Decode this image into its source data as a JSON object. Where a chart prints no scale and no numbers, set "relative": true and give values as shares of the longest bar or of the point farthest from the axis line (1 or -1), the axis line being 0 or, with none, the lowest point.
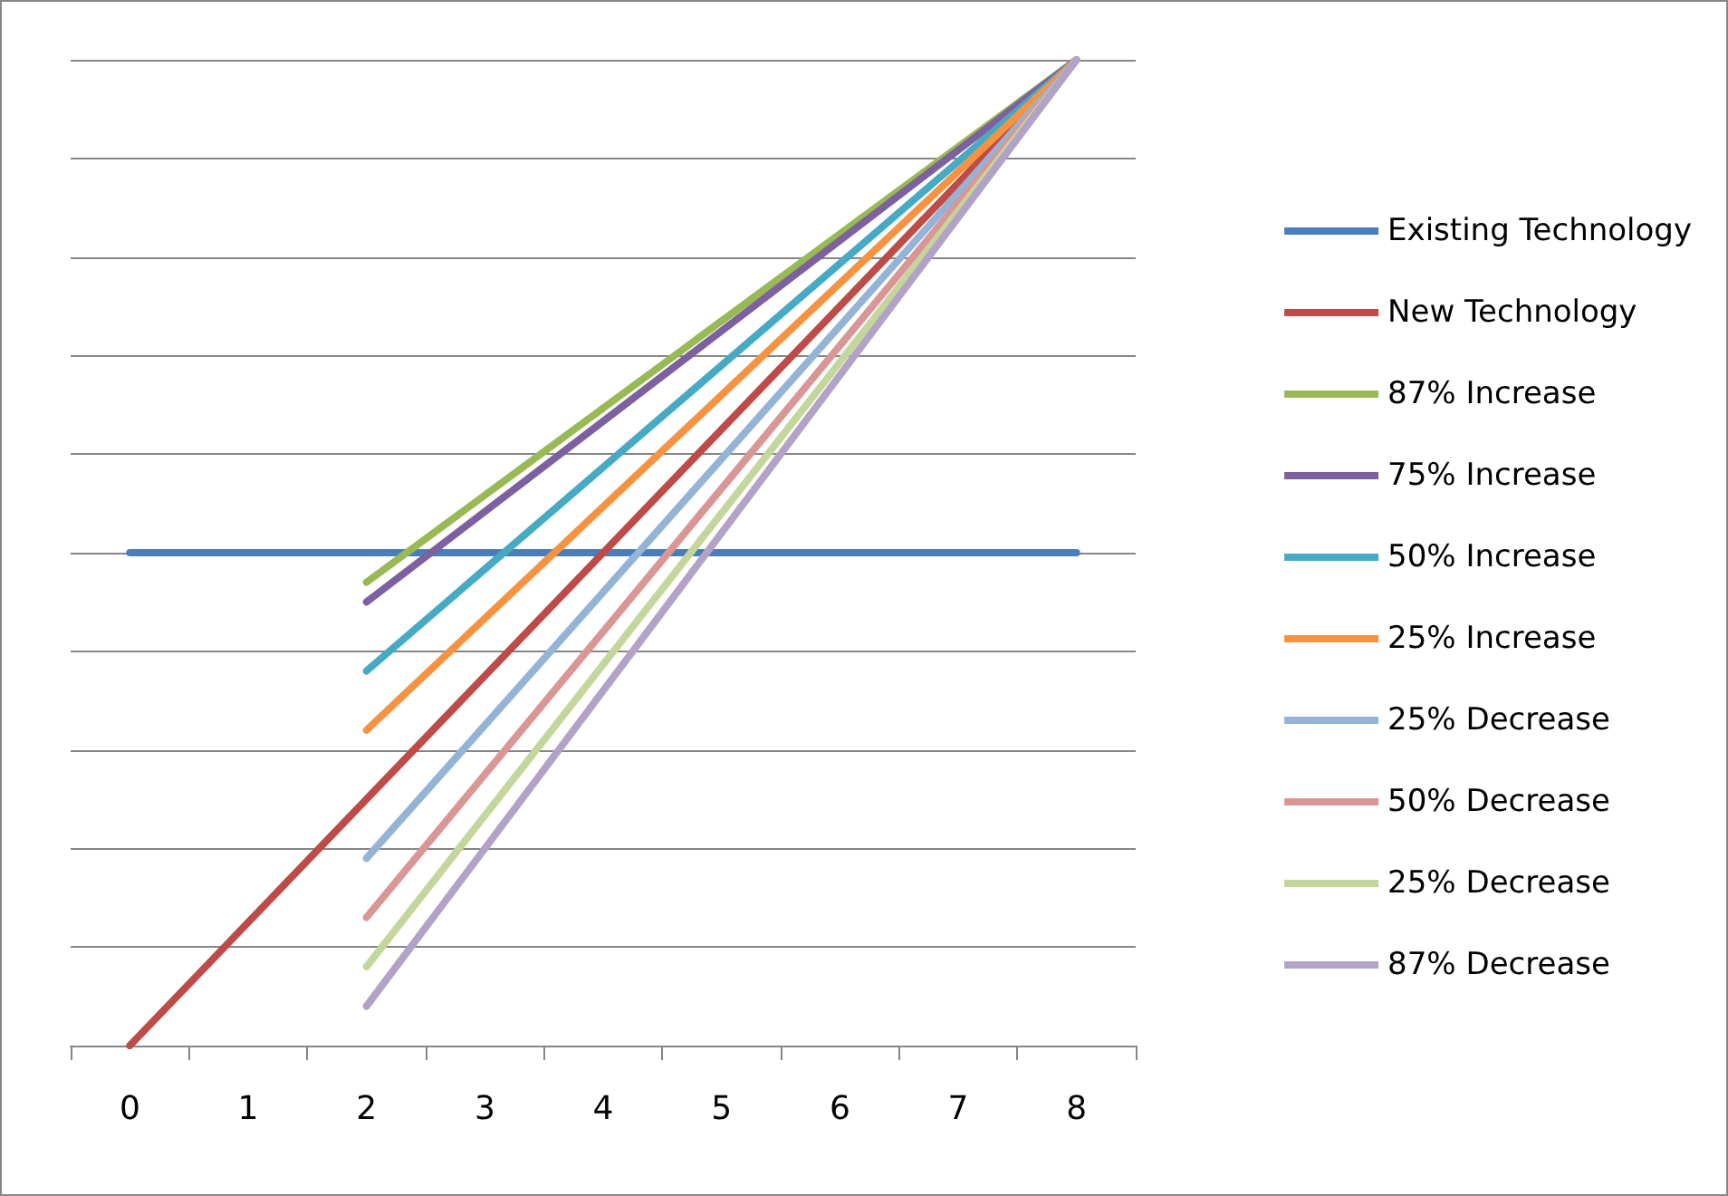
{
  "chart_data": {
    "type": "line",
    "relative": true,
    "categories": [
      "0",
      "1",
      "2",
      "3",
      "4",
      "5",
      "6",
      "7",
      "8"
    ],
    "grid": "y",
    "legend": "right",
    "marker": "none",
    "line_style": "solid",
    "series": [
      {
        "name": "Existing Technology",
        "color": "#4a7ebb",
        "x": [
          "0",
          "8"
        ],
        "values": [
          0.5,
          0.5
        ]
      },
      {
        "name": "New Technology",
        "color": "#be4b48",
        "x": [
          "0",
          "8"
        ],
        "values": [
          0,
          1
        ]
      },
      {
        "name": "87% Increase",
        "color": "#98b954",
        "x": [
          "2",
          "8"
        ],
        "values": [
          0.47,
          1
        ]
      },
      {
        "name": "75% Increase",
        "color": "#7d60a0",
        "x": [
          "2",
          "8"
        ],
        "values": [
          0.45,
          1
        ]
      },
      {
        "name": "50% Increase",
        "color": "#46aac5",
        "x": [
          "2",
          "8"
        ],
        "values": [
          0.38,
          1
        ]
      },
      {
        "name": "25% Increase",
        "color": "#f69240",
        "x": [
          "2",
          "8"
        ],
        "values": [
          0.32,
          1
        ]
      },
      {
        "name": "25% Decrease",
        "color": "#95b3d7",
        "x": [
          "2",
          "8"
        ],
        "values": [
          0.19,
          1
        ]
      },
      {
        "name": "50% Decrease",
        "color": "#d99694",
        "x": [
          "2",
          "8"
        ],
        "values": [
          0.13,
          1
        ]
      },
      {
        "name": "25% Decrease",
        "color": "#c3d69b",
        "x": [
          "2",
          "8"
        ],
        "values": [
          0.08,
          1
        ]
      },
      {
        "name": "87% Decrease",
        "color": "#b3a2c7",
        "x": [
          "2",
          "8"
        ],
        "values": [
          0.04,
          1
        ]
      }
    ]
  }
}
